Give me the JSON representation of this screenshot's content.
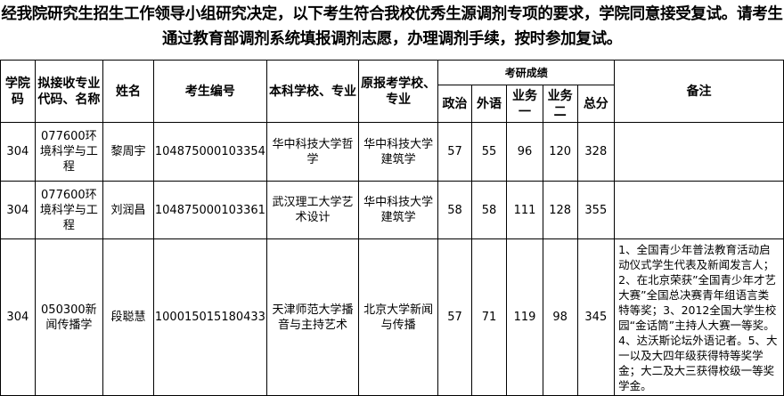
{
  "intro": "经我院研究生招生工作领导小组研究决定，以下考生符合我校优秀生源调剂专项的要求，学院同意接受复试。请考生通过教育部调剂系统填报调剂志愿，办理调剂手续，按时参加复试。",
  "headers": {
    "college_code": "学院码",
    "major": "拟接收专业代码、名称",
    "name": "姓名",
    "exam_no": "考生编号",
    "undergrad": "本科学校、专业",
    "orig": "原报考学校、专业",
    "scores": "考研成绩",
    "politics": "政治",
    "foreign": "外语",
    "biz1": "业务一",
    "biz2": "业务二",
    "total": "总分",
    "remarks": "备注"
  },
  "rows": [
    {
      "code": "304",
      "major": "077600环境科学与工程",
      "name": "黎周宇",
      "exam_no": "104875000103354",
      "undergrad": "华中科技大学哲学",
      "orig": "华中科技大学建筑学",
      "politics": "57",
      "foreign": "55",
      "biz1": "96",
      "biz2": "120",
      "total": "328",
      "remarks": ""
    },
    {
      "code": "304",
      "major": "077600环境科学与工程",
      "name": "刘润昌",
      "exam_no": "104875000103361",
      "undergrad": "武汉理工大学艺术设计",
      "orig": "华中科技大学建筑学",
      "politics": "58",
      "foreign": "58",
      "biz1": "111",
      "biz2": "128",
      "total": "355",
      "remarks": ""
    },
    {
      "code": "304",
      "major": "050300新闻传播学",
      "name": "段聪慧",
      "exam_no": "100015015180433",
      "undergrad": "天津师范大学播音与主持艺术",
      "orig": "北京大学新闻与传播",
      "politics": "57",
      "foreign": "71",
      "biz1": "119",
      "biz2": "98",
      "total": "345",
      "remarks": "1、全国青少年普法教育活动启动仪式学生代表及新闻发言人；2、在北京荣获”全国青少年才艺大赛”全国总决赛青年组语言类特等奖；3、2012全国大学生校园“金话筒”主持人大赛一等奖。4、达沃斯论坛外语记者。5、大一以及大四年级获得特等奖学金；大二及大三获得校级一等奖学金。"
    }
  ]
}
